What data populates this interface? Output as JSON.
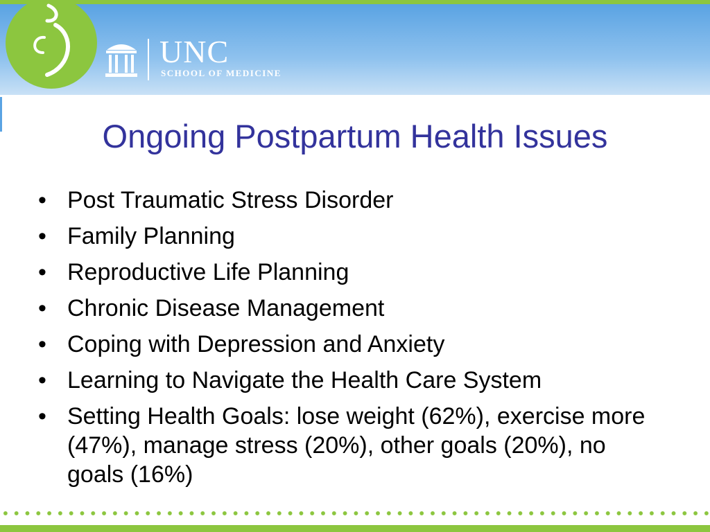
{
  "header": {
    "org_name": "UNC",
    "org_subtitle": "SCHOOL OF MEDICINE",
    "logo_icon": "green-circle-swirl-logo",
    "building_icon": "old-well-icon"
  },
  "slide": {
    "title": "Ongoing Postpartum Health Issues",
    "bullet_glyph": "•",
    "bullets": [
      "Post Traumatic Stress Disorder",
      "Family Planning",
      "Reproductive Life Planning",
      "Chronic Disease Management",
      "Coping with Depression and Anxiety",
      "Learning to Navigate the Health Care System",
      "Setting Health Goals: lose weight (62%), exercise more (47%), manage stress (20%), other goals (20%), no goals (16%)"
    ]
  },
  "colors": {
    "accent_green": "#8cc63f",
    "header_blue": "#5aa3e3",
    "title_blue": "#33339c"
  }
}
